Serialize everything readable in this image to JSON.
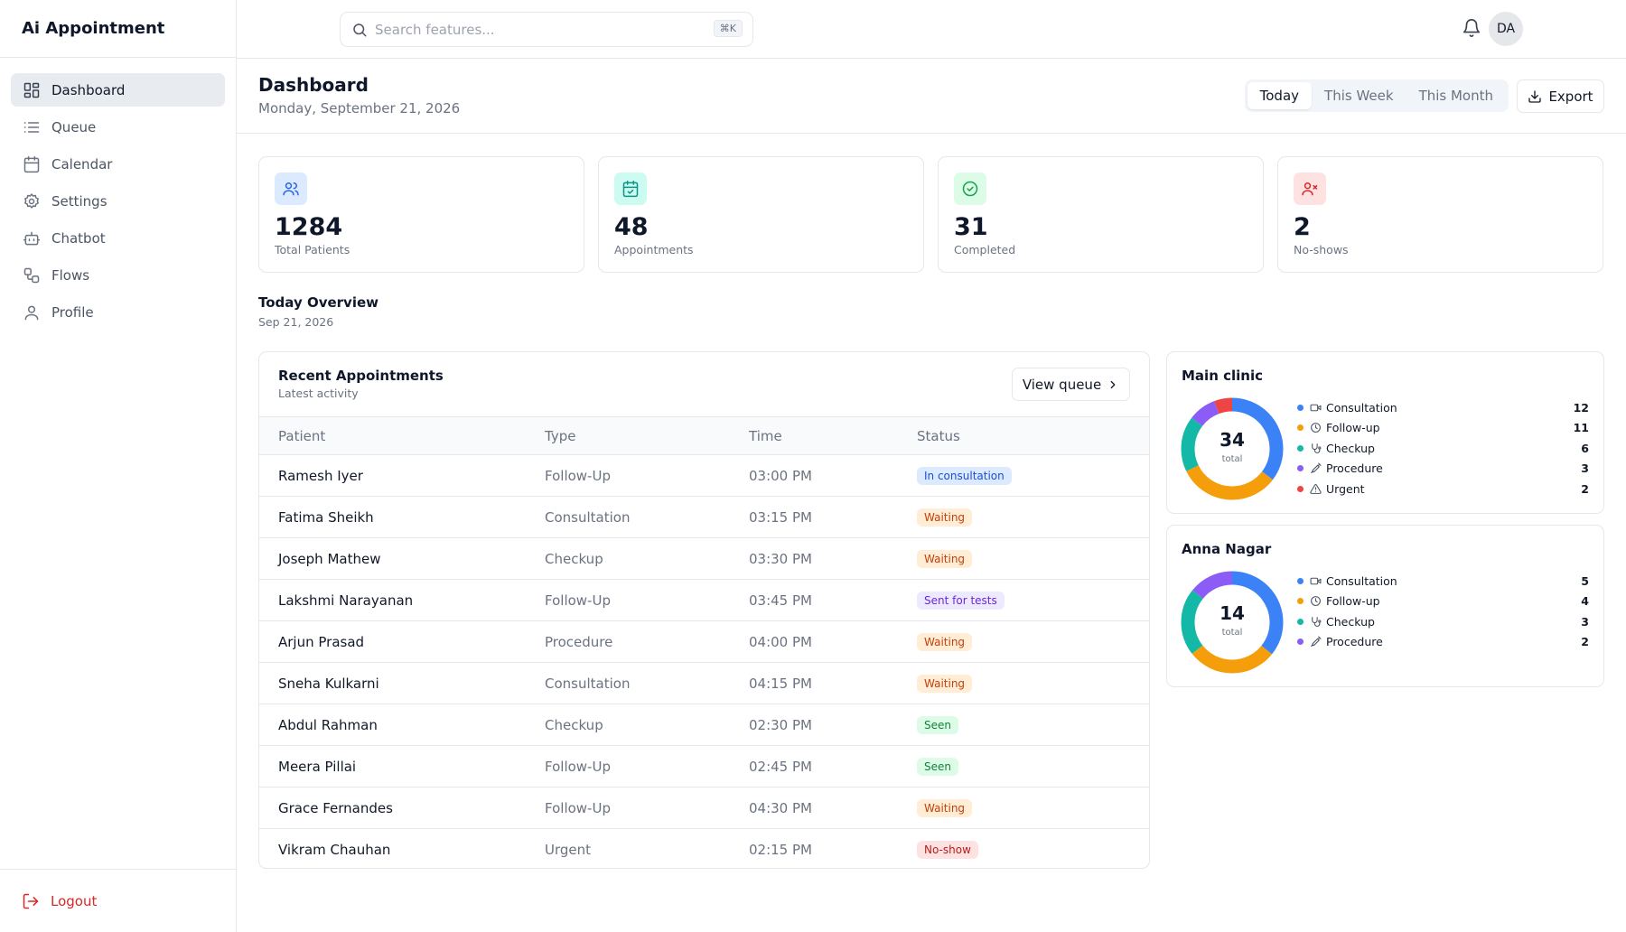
{
  "app": {
    "title": "Ai Appointment"
  },
  "sidebar": {
    "items": [
      {
        "label": "Dashboard",
        "active": true
      },
      {
        "label": "Queue"
      },
      {
        "label": "Calendar"
      },
      {
        "label": "Settings"
      },
      {
        "label": "Chatbot"
      },
      {
        "label": "Flows"
      },
      {
        "label": "Profile"
      }
    ],
    "logout_label": "Logout"
  },
  "topbar": {
    "search_placeholder": "Search features...",
    "search_shortcut": "⌘K",
    "avatar_initials": "DA"
  },
  "header": {
    "title": "Dashboard",
    "date": "Monday, September 21, 2026",
    "range_options": [
      "Today",
      "This Week",
      "This Month"
    ],
    "range_selected": "Today",
    "export_label": "Export"
  },
  "stats": [
    {
      "value": "1284",
      "label": "Total Patients",
      "icon": "users-icon",
      "color": "#2563eb",
      "bg": "#dbeafe"
    },
    {
      "value": "48",
      "label": "Appointments",
      "icon": "calendar-check-icon",
      "color": "#0d9488",
      "bg": "#ccfbf1"
    },
    {
      "value": "31",
      "label": "Completed",
      "icon": "check-circle-icon",
      "color": "#16a34a",
      "bg": "#dcfce7"
    },
    {
      "value": "2",
      "label": "No-shows",
      "icon": "user-x-icon",
      "color": "#dc2626",
      "bg": "#fee2e2"
    }
  ],
  "overview": {
    "title": "Today Overview",
    "date": "Sep 21, 2026"
  },
  "appointments": {
    "title": "Recent Appointments",
    "subtitle": "Latest activity",
    "view_queue_label": "View queue",
    "columns": [
      "Patient",
      "Type",
      "Time",
      "Status"
    ],
    "rows": [
      {
        "patient": "Ramesh Iyer",
        "type": "Follow-Up",
        "time": "03:00 PM",
        "status": "In consultation",
        "status_color": "#1d4ed8",
        "status_bg": "#dbeafe"
      },
      {
        "patient": "Fatima Sheikh",
        "type": "Consultation",
        "time": "03:15 PM",
        "status": "Waiting",
        "status_color": "#c2410c",
        "status_bg": "#ffedd5"
      },
      {
        "patient": "Joseph Mathew",
        "type": "Checkup",
        "time": "03:30 PM",
        "status": "Waiting",
        "status_color": "#c2410c",
        "status_bg": "#ffedd5"
      },
      {
        "patient": "Lakshmi Narayanan",
        "type": "Follow-Up",
        "time": "03:45 PM",
        "status": "Sent for tests",
        "status_color": "#6d28d9",
        "status_bg": "#ede9fe"
      },
      {
        "patient": "Arjun Prasad",
        "type": "Procedure",
        "time": "04:00 PM",
        "status": "Waiting",
        "status_color": "#c2410c",
        "status_bg": "#ffedd5"
      },
      {
        "patient": "Sneha Kulkarni",
        "type": "Consultation",
        "time": "04:15 PM",
        "status": "Waiting",
        "status_color": "#c2410c",
        "status_bg": "#ffedd5"
      },
      {
        "patient": "Abdul Rahman",
        "type": "Checkup",
        "time": "02:30 PM",
        "status": "Seen",
        "status_color": "#15803d",
        "status_bg": "#dcfce7"
      },
      {
        "patient": "Meera Pillai",
        "type": "Follow-Up",
        "time": "02:45 PM",
        "status": "Seen",
        "status_color": "#15803d",
        "status_bg": "#dcfce7"
      },
      {
        "patient": "Grace Fernandes",
        "type": "Follow-Up",
        "time": "04:30 PM",
        "status": "Waiting",
        "status_color": "#c2410c",
        "status_bg": "#ffedd5"
      },
      {
        "patient": "Vikram Chauhan",
        "type": "Urgent",
        "time": "02:15 PM",
        "status": "No-show",
        "status_color": "#b91c1c",
        "status_bg": "#fee2e2"
      }
    ]
  },
  "clinics": [
    {
      "name": "Main clinic",
      "total": "34",
      "total_label": "total",
      "breakdown": [
        {
          "label": "Consultation",
          "count": 12,
          "color": "#3b82f6",
          "icon": "video-icon"
        },
        {
          "label": "Follow-up",
          "count": 11,
          "color": "#f59e0b",
          "icon": "clock-icon"
        },
        {
          "label": "Checkup",
          "count": 6,
          "color": "#14b8a6",
          "icon": "stethoscope-icon"
        },
        {
          "label": "Procedure",
          "count": 3,
          "color": "#8b5cf6",
          "icon": "syringe-icon"
        },
        {
          "label": "Urgent",
          "count": 2,
          "color": "#ef4444",
          "icon": "alert-triangle-icon"
        }
      ]
    },
    {
      "name": "Anna Nagar",
      "total": "14",
      "total_label": "total",
      "breakdown": [
        {
          "label": "Consultation",
          "count": 5,
          "color": "#3b82f6",
          "icon": "video-icon"
        },
        {
          "label": "Follow-up",
          "count": 4,
          "color": "#f59e0b",
          "icon": "clock-icon"
        },
        {
          "label": "Checkup",
          "count": 3,
          "color": "#14b8a6",
          "icon": "stethoscope-icon"
        },
        {
          "label": "Procedure",
          "count": 2,
          "color": "#8b5cf6",
          "icon": "syringe-icon"
        }
      ]
    }
  ]
}
